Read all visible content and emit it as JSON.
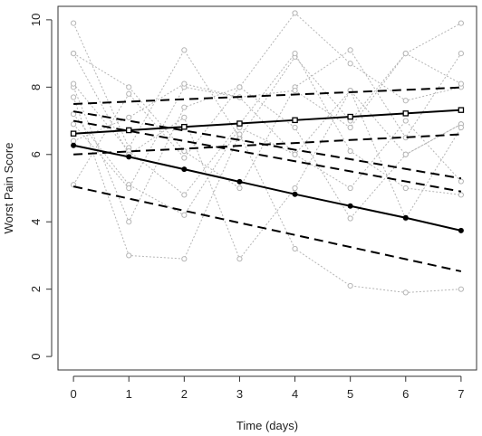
{
  "chart_data": {
    "type": "line",
    "title": "",
    "xlabel": "Time (days)",
    "ylabel": "Worst Pain Score",
    "xlim": [
      -0.28,
      7.28
    ],
    "ylim": [
      -0.4,
      10.4
    ],
    "x_ticks": [
      "0",
      "1",
      "2",
      "3",
      "4",
      "5",
      "6",
      "7"
    ],
    "y_ticks": [
      "0",
      "2",
      "4",
      "6",
      "8",
      "10"
    ],
    "colors": {
      "individual": "#b5b5b5",
      "fit": "#000000",
      "frame": "#333333"
    },
    "x": [
      0,
      1,
      2,
      3,
      4,
      5,
      6,
      7
    ],
    "individual_series": [
      {
        "values": [
          9.9,
          6.2,
          9.1,
          6.5,
          8.9,
          7.0,
          9.0,
          9.9
        ]
      },
      {
        "values": [
          8.0,
          4.0,
          7.4,
          8.0,
          10.2,
          8.7,
          7.6,
          8.0
        ]
      },
      {
        "values": [
          7.7,
          3.0,
          2.9,
          6.6,
          3.2,
          2.1,
          1.9,
          2.0
        ]
      },
      {
        "values": [
          7.2,
          5.1,
          4.2,
          6.8,
          6.0,
          5.0,
          7.0,
          5.2
        ]
      },
      {
        "values": [
          9.0,
          8.0,
          6.1,
          5.0,
          8.0,
          9.1,
          6.5,
          9.0
        ]
      },
      {
        "values": [
          5.1,
          7.8,
          5.9,
          8.0,
          6.8,
          4.1,
          6.0,
          6.9
        ]
      },
      {
        "values": [
          6.9,
          5.0,
          8.0,
          7.7,
          7.9,
          6.8,
          9.0,
          8.1
        ]
      },
      {
        "values": [
          8.1,
          6.1,
          4.8,
          6.9,
          9.0,
          6.1,
          5.0,
          4.8
        ]
      },
      {
        "values": [
          6.4,
          7.1,
          8.1,
          7.7,
          6.0,
          7.9,
          6.0,
          6.9
        ]
      },
      {
        "values": [
          9.0,
          6.0,
          7.1,
          2.9,
          5.0,
          7.9,
          4.1,
          6.8
        ]
      }
    ],
    "series": [
      {
        "style": "solid",
        "marker": "circle",
        "values": [
          6.27,
          5.93,
          5.56,
          5.19,
          4.82,
          4.47,
          4.12,
          3.74
        ]
      },
      {
        "style": "solid",
        "marker": "square",
        "values": [
          6.62,
          6.72,
          6.82,
          6.92,
          7.02,
          7.12,
          7.22,
          7.32
        ]
      },
      {
        "style": "dashed",
        "marker": "none",
        "values": [
          7.5,
          7.57,
          7.64,
          7.71,
          7.78,
          7.85,
          7.92,
          7.99
        ]
      },
      {
        "style": "dashed",
        "marker": "none",
        "values": [
          7.28,
          7.0,
          6.71,
          6.43,
          6.14,
          5.86,
          5.57,
          5.29
        ]
      },
      {
        "style": "dashed",
        "marker": "none",
        "values": [
          6.0,
          6.09,
          6.17,
          6.26,
          6.34,
          6.43,
          6.51,
          6.6
        ]
      },
      {
        "style": "dashed",
        "marker": "none",
        "values": [
          7.0,
          6.7,
          6.4,
          6.1,
          5.8,
          5.5,
          5.2,
          4.9
        ]
      },
      {
        "style": "dashed",
        "marker": "none",
        "values": [
          5.05,
          4.69,
          4.33,
          3.97,
          3.61,
          3.25,
          2.89,
          2.53
        ]
      }
    ]
  }
}
